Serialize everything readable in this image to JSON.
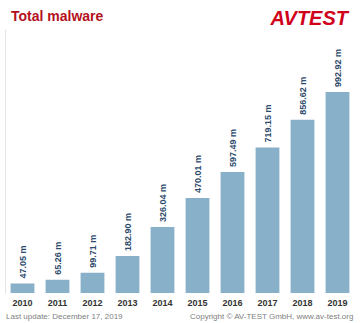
{
  "chart_data": {
    "type": "bar",
    "title": "Total malware",
    "logo": "AVTEST",
    "categories": [
      "2010",
      "2011",
      "2012",
      "2013",
      "2014",
      "2015",
      "2016",
      "2017",
      "2018",
      "2019"
    ],
    "values": [
      47.05,
      65.26,
      99.71,
      182.9,
      326.04,
      470.01,
      597.49,
      719.15,
      856.62,
      992.92
    ],
    "value_labels": [
      "47.05 m",
      "65.26 m",
      "99.71 m",
      "182.90 m",
      "326.04 m",
      "470.01 m",
      "597.49 m",
      "719.15 m",
      "856.62 m",
      "992.92 m"
    ],
    "color": "#88b0c8",
    "ylim": [
      0,
      1300
    ],
    "grid": false,
    "data_labels": true,
    "tick_labels": "x",
    "notes": [
      "Last update: December 17, 2019",
      "Copyright © AV-TEST GmbH, www.av-test.org"
    ]
  }
}
